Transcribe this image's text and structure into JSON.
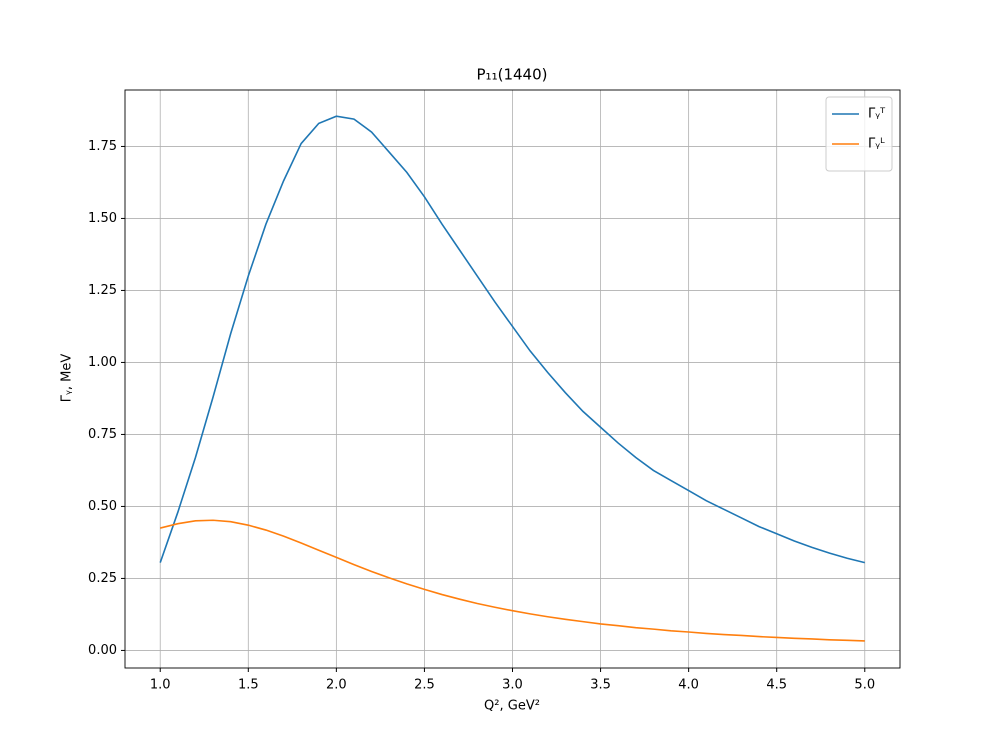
{
  "chart_data": {
    "type": "line",
    "title": "P₁₁(1440)",
    "x_label": "Q², GeV²",
    "y_label": "Γᵧ, MeV",
    "x": [
      1.0,
      1.1,
      1.2,
      1.3,
      1.4,
      1.5,
      1.6,
      1.7,
      1.8,
      1.9,
      2.0,
      2.1,
      2.2,
      2.3,
      2.4,
      2.5,
      2.6,
      2.7,
      2.8,
      2.9,
      3.0,
      3.1,
      3.2,
      3.3,
      3.4,
      3.5,
      3.6,
      3.7,
      3.8,
      3.9,
      4.0,
      4.1,
      4.2,
      4.3,
      4.4,
      4.5,
      4.6,
      4.7,
      4.8,
      4.9,
      5.0
    ],
    "series": [
      {
        "name": "Γᵧᵀ",
        "color": "#1f77b4",
        "values": [
          0.305,
          0.48,
          0.67,
          0.88,
          1.1,
          1.3,
          1.48,
          1.63,
          1.76,
          1.83,
          1.855,
          1.845,
          1.8,
          1.73,
          1.66,
          1.575,
          1.48,
          1.39,
          1.3,
          1.21,
          1.125,
          1.04,
          0.965,
          0.895,
          0.83,
          0.775,
          0.72,
          0.67,
          0.625,
          0.59,
          0.555,
          0.52,
          0.49,
          0.46,
          0.43,
          0.405,
          0.38,
          0.358,
          0.338,
          0.32,
          0.305
        ]
      },
      {
        "name": "Γᵧᴸ",
        "color": "#ff7f0e",
        "values": [
          0.425,
          0.44,
          0.45,
          0.452,
          0.447,
          0.435,
          0.418,
          0.397,
          0.373,
          0.348,
          0.323,
          0.298,
          0.274,
          0.252,
          0.231,
          0.212,
          0.194,
          0.178,
          0.163,
          0.15,
          0.138,
          0.127,
          0.117,
          0.108,
          0.1,
          0.092,
          0.086,
          0.079,
          0.074,
          0.068,
          0.064,
          0.059,
          0.055,
          0.052,
          0.048,
          0.045,
          0.042,
          0.04,
          0.037,
          0.035,
          0.033
        ]
      }
    ],
    "xlim": [
      0.8,
      5.2
    ],
    "xticks": [
      {
        "value": 1,
        "label": "1.0"
      },
      {
        "value": 1.5,
        "label": "1.5"
      },
      {
        "value": 2,
        "label": "2.0"
      },
      {
        "value": 2.5,
        "label": "2.5"
      },
      {
        "value": 3,
        "label": "3.0"
      },
      {
        "value": 3.5,
        "label": "3.5"
      },
      {
        "value": 4,
        "label": "4.0"
      },
      {
        "value": 4.5,
        "label": "4.5"
      },
      {
        "value": 5,
        "label": "5.0"
      }
    ],
    "ylim": [
      -0.061,
      1.946
    ],
    "yticks": [
      {
        "value": 0,
        "label": "0.00"
      },
      {
        "value": 0.25,
        "label": "0.25"
      },
      {
        "value": 0.5,
        "label": "0.50"
      },
      {
        "value": 0.75,
        "label": "0.75"
      },
      {
        "value": 1,
        "label": "1.00"
      },
      {
        "value": 1.25,
        "label": "1.25"
      },
      {
        "value": 1.5,
        "label": "1.50"
      },
      {
        "value": 1.75,
        "label": "1.75"
      }
    ],
    "grid": true,
    "legend": "upper-right"
  }
}
